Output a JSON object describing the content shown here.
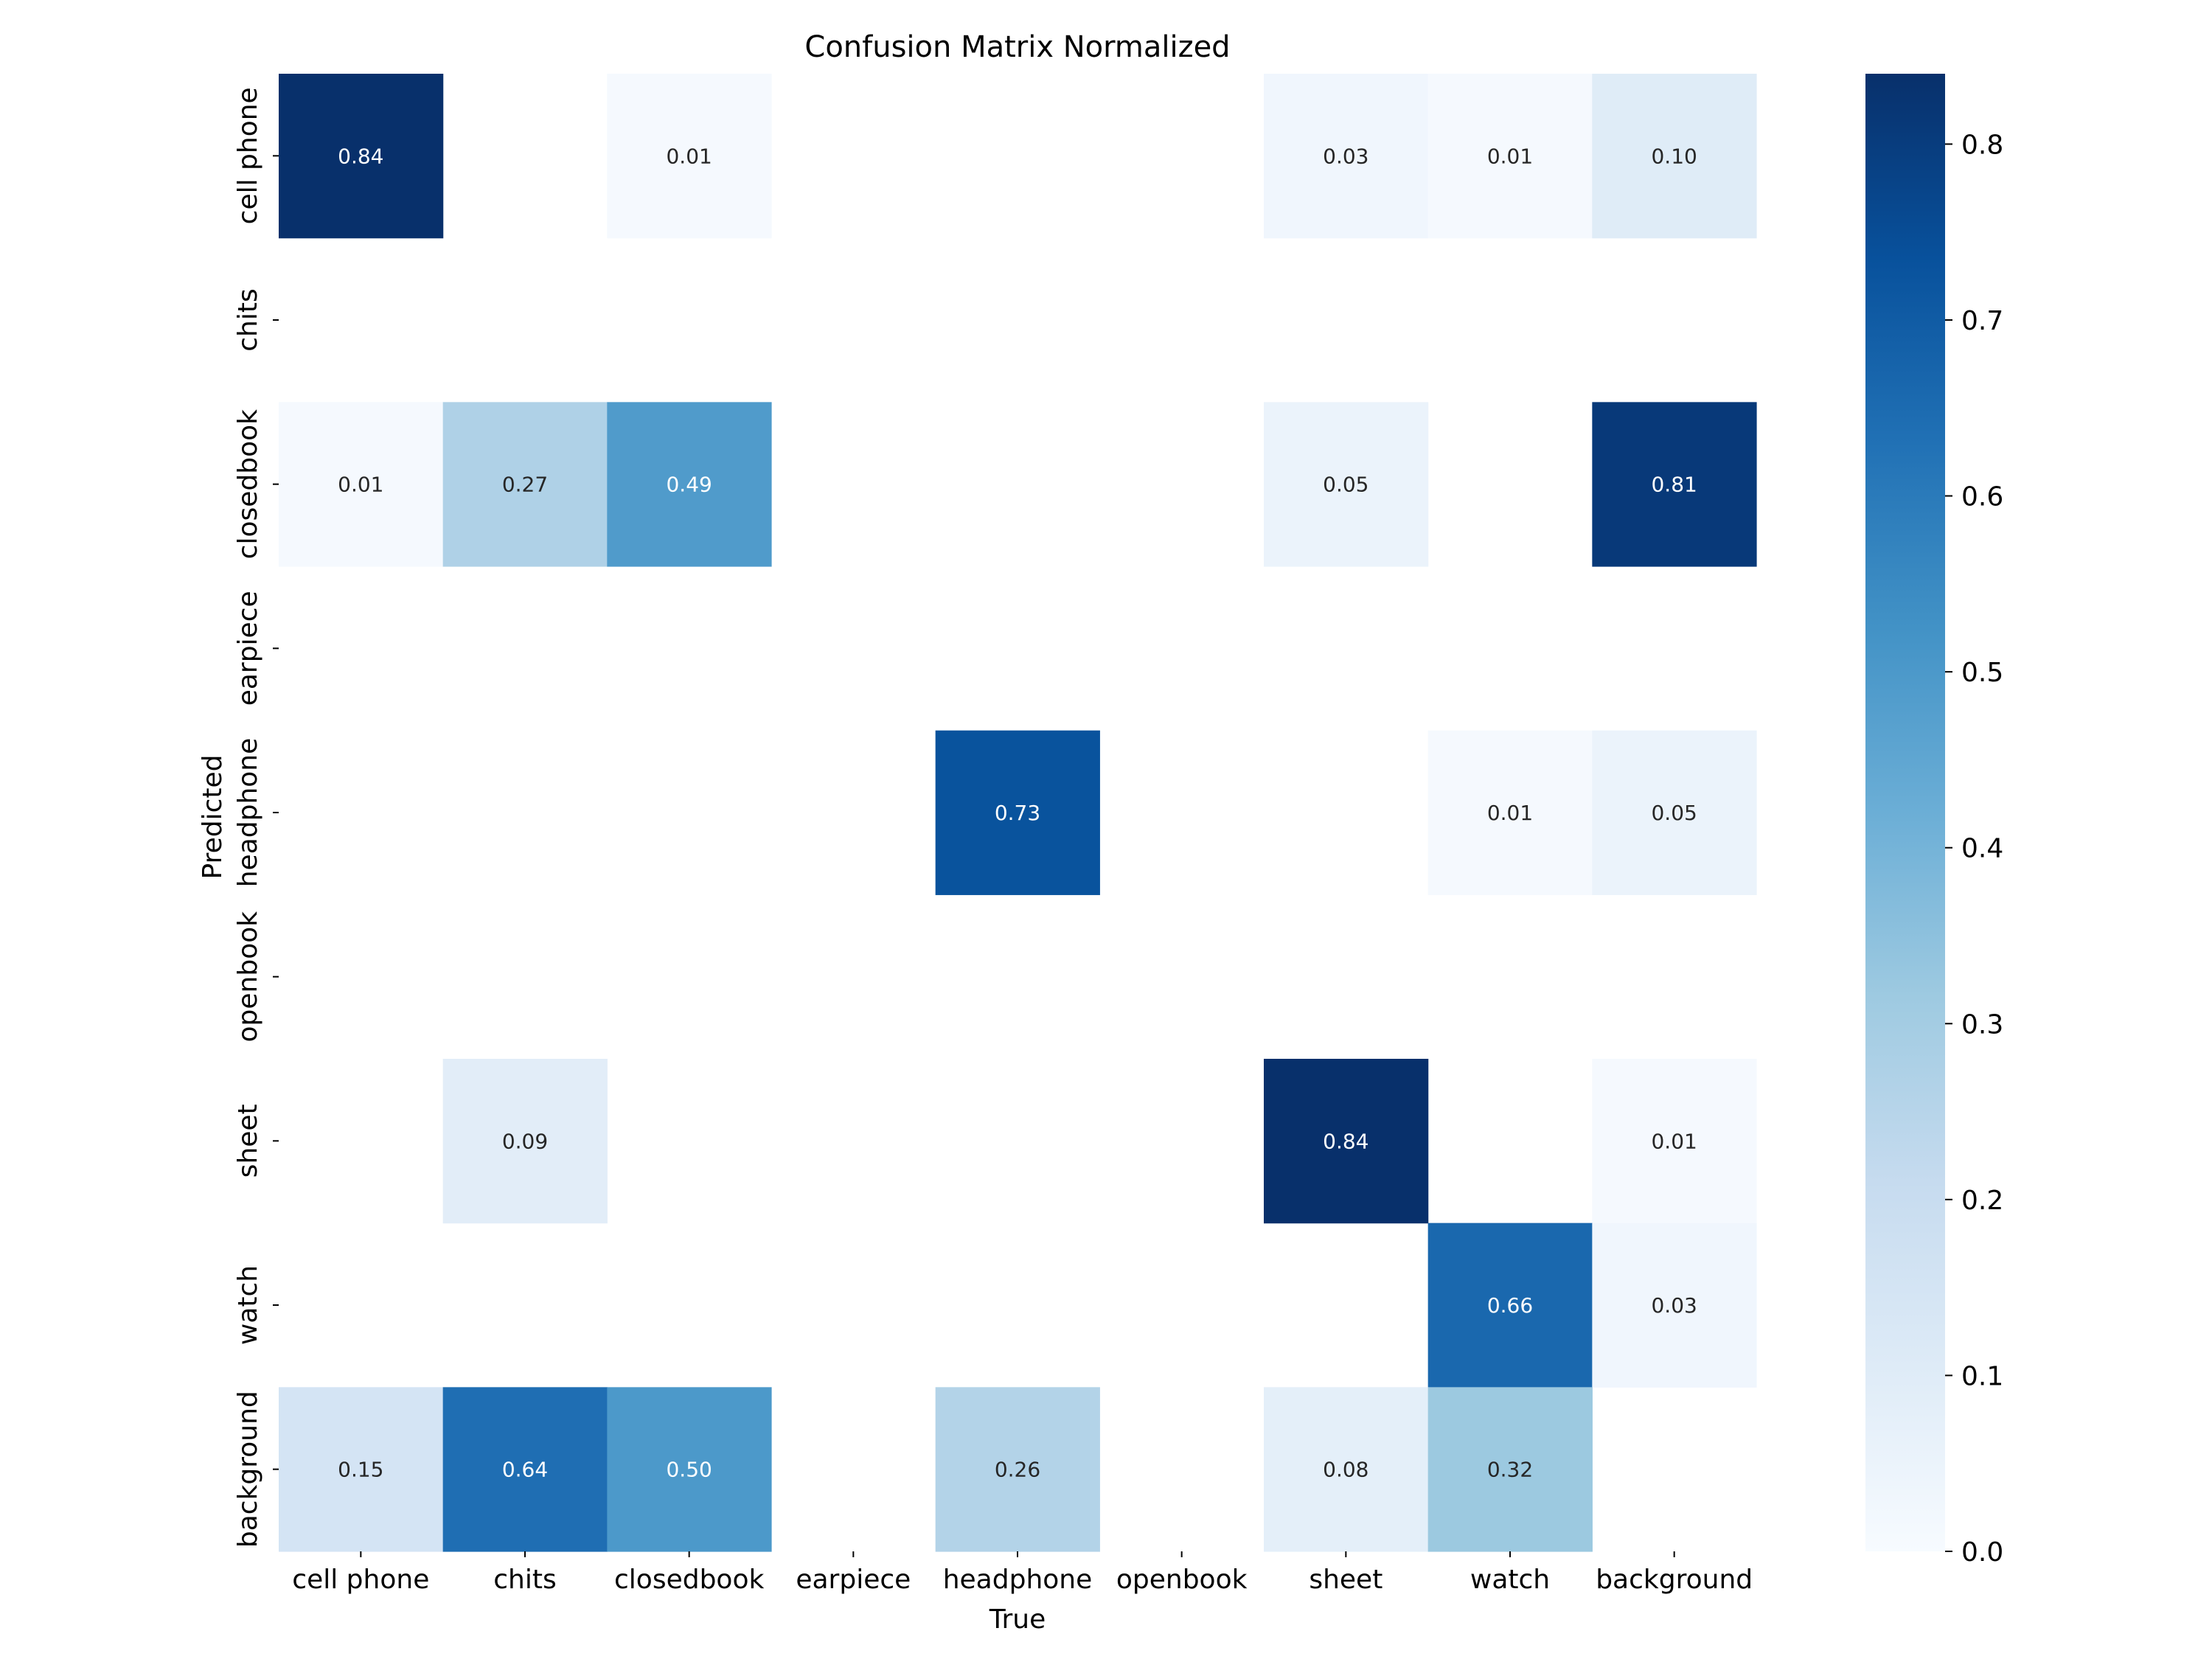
{
  "chart_data": {
    "type": "heatmap",
    "title": "Confusion Matrix Normalized",
    "xlabel": "True",
    "ylabel": "Predicted",
    "x_categories": [
      "cell phone",
      "chits",
      "closedbook",
      "earpiece",
      "headphone",
      "openbook",
      "sheet",
      "watch",
      "background"
    ],
    "y_categories": [
      "cell phone",
      "chits",
      "closedbook",
      "earpiece",
      "headphone",
      "openbook",
      "sheet",
      "watch",
      "background"
    ],
    "values": [
      [
        0.84,
        null,
        0.01,
        null,
        null,
        null,
        0.03,
        0.01,
        0.1
      ],
      [
        null,
        null,
        null,
        null,
        null,
        null,
        null,
        null,
        null
      ],
      [
        0.01,
        0.27,
        0.49,
        null,
        null,
        null,
        0.05,
        null,
        0.81
      ],
      [
        null,
        null,
        null,
        null,
        null,
        null,
        null,
        null,
        null
      ],
      [
        null,
        null,
        null,
        null,
        0.73,
        null,
        null,
        0.01,
        0.05
      ],
      [
        null,
        null,
        null,
        null,
        null,
        null,
        null,
        null,
        null
      ],
      [
        null,
        0.09,
        null,
        null,
        null,
        null,
        0.84,
        null,
        0.01
      ],
      [
        null,
        null,
        null,
        null,
        null,
        null,
        null,
        0.66,
        0.03
      ],
      [
        0.15,
        0.64,
        0.5,
        null,
        0.26,
        null,
        0.08,
        0.32,
        null
      ]
    ],
    "value_format": "0.00",
    "colormap": "Blues",
    "vmin": 0.0,
    "vmax": 0.84,
    "colorbar_ticks": [
      "0.0",
      "0.1",
      "0.2",
      "0.3",
      "0.4",
      "0.5",
      "0.6",
      "0.7",
      "0.8"
    ],
    "colorbar_tick_values": [
      0.0,
      0.1,
      0.2,
      0.3,
      0.4,
      0.5,
      0.6,
      0.7,
      0.8
    ],
    "colorscale": [
      "#f7fbff",
      "#deebf7",
      "#c6dbef",
      "#9ecae1",
      "#6baed6",
      "#4292c6",
      "#2171b5",
      "#08519c",
      "#08306b"
    ]
  }
}
